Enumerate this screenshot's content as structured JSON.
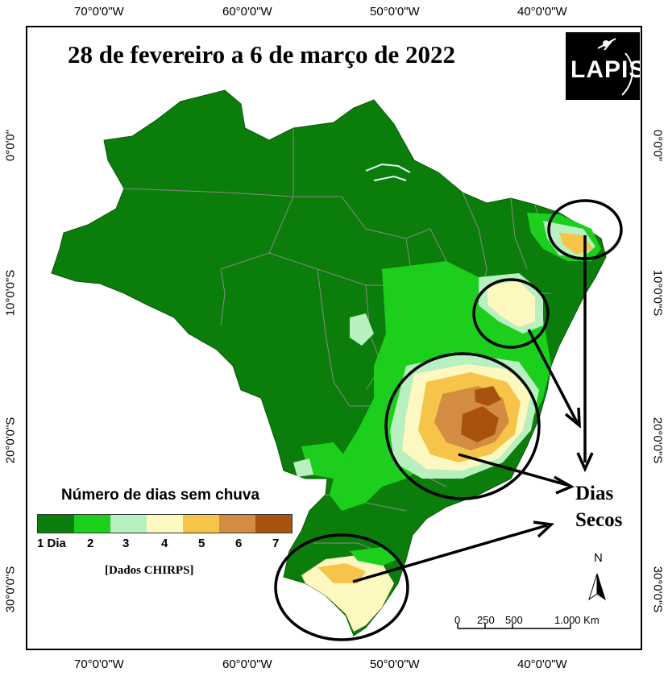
{
  "title": "28 de fevereiro a 6 de março de 2022",
  "logo": {
    "text": "LAPIS"
  },
  "axes": {
    "top": [
      "70°0'0\"W",
      "60°0'0\"W",
      "50°0'0\"W",
      "40°0'0\"W"
    ],
    "bottom": [
      "70°0'0\"W",
      "60°0'0\"W",
      "50°0'0\"W",
      "40°0'0\"W"
    ],
    "left": [
      "0°0'0\"",
      "10°0'0\"S",
      "20°0'0\"S",
      "30°0'0\"S"
    ],
    "right": [
      "0°0'0\"",
      "10°0'0\"S",
      "20°0'0\"S",
      "30°0'0\"S"
    ]
  },
  "legend": {
    "title": "Número de dias sem chuva",
    "classes": [
      {
        "label": "1 Dia",
        "color": "#0a7d0a"
      },
      {
        "label": "2",
        "color": "#1ccf1c"
      },
      {
        "label": "3",
        "color": "#b8f0c0"
      },
      {
        "label": "4",
        "color": "#fcf8c0"
      },
      {
        "label": "5",
        "color": "#f7c44a"
      },
      {
        "label": "6",
        "color": "#d48c42"
      },
      {
        "label": "7",
        "color": "#a8530d"
      }
    ],
    "source": "[Dados CHIRPS]"
  },
  "annotation": {
    "line1": "Dias",
    "line2": "Secos"
  },
  "north_arrow": {
    "label": "N"
  },
  "scale_bar": {
    "labels": [
      "0",
      "250",
      "500",
      "1.000 Km"
    ]
  }
}
